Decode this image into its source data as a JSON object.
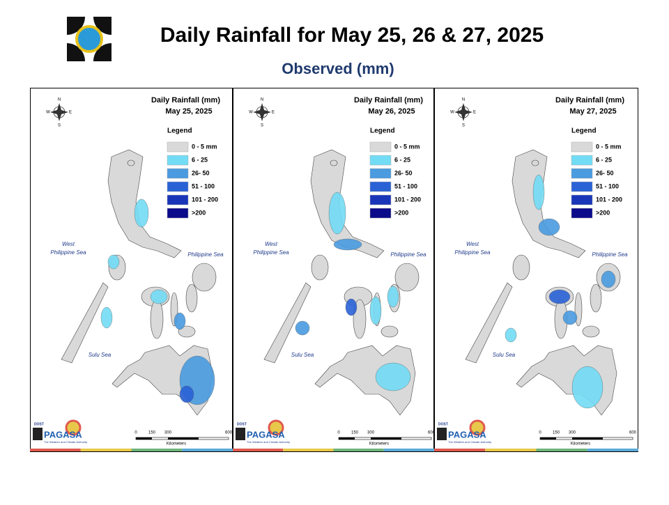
{
  "header": {
    "title": "Daily Rainfall for May 25, 26 & 27, 2025",
    "subtitle": "Observed (mm)"
  },
  "panels": [
    {
      "title": "Daily Rainfall (mm)",
      "date": "May 25, 2025",
      "legend_title": "Legend",
      "legend": [
        {
          "label": "0 - 5 mm",
          "color": "#d9d9d9"
        },
        {
          "label": "6 - 25",
          "color": "#73dcf5"
        },
        {
          "label": "26- 50",
          "color": "#4a9be0"
        },
        {
          "label": "51 - 100",
          "color": "#2a62d6"
        },
        {
          "label": "101 - 200",
          "color": "#1a36b8"
        },
        {
          "label": ">200",
          "color": "#0a0a8a"
        }
      ],
      "compass": [
        "N",
        "E",
        "S",
        "W"
      ],
      "seas": {
        "west": [
          "West",
          "Philippine Sea"
        ],
        "east": "Philippine Sea",
        "sulu": "Sulu Sea"
      },
      "scale": {
        "ticks": [
          0,
          150,
          300,
          600
        ],
        "unit": "Kilometers"
      },
      "logo": {
        "agency": "DOST",
        "name": "PAGASA",
        "tagline": "The Weather and Climate Authority"
      }
    },
    {
      "title": "Daily Rainfall (mm)",
      "date": "May 26, 2025",
      "legend_title": "Legend",
      "legend": [
        {
          "label": "0 - 5 mm",
          "color": "#d9d9d9"
        },
        {
          "label": "6 - 25",
          "color": "#73dcf5"
        },
        {
          "label": "26- 50",
          "color": "#4a9be0"
        },
        {
          "label": "51 - 100",
          "color": "#2a62d6"
        },
        {
          "label": "101 - 200",
          "color": "#1a36b8"
        },
        {
          "label": ">200",
          "color": "#0a0a8a"
        }
      ],
      "compass": [
        "N",
        "E",
        "S",
        "W"
      ],
      "seas": {
        "west": [
          "West",
          "Philippine Sea"
        ],
        "east": "Philippine Sea",
        "sulu": "Sulu Sea"
      },
      "scale": {
        "ticks": [
          0,
          150,
          300,
          600
        ],
        "unit": "Kilometers"
      },
      "logo": {
        "agency": "DOST",
        "name": "PAGASA",
        "tagline": "The Weather and Climate Authority"
      }
    },
    {
      "title": "Daily Rainfall (mm)",
      "date": "May 27, 2025",
      "legend_title": "Legend",
      "legend": [
        {
          "label": "0 - 5 mm",
          "color": "#d9d9d9"
        },
        {
          "label": "6 - 25",
          "color": "#73dcf5"
        },
        {
          "label": "26- 50",
          "color": "#4a9be0"
        },
        {
          "label": "51 - 100",
          "color": "#2a62d6"
        },
        {
          "label": "101 - 200",
          "color": "#1a36b8"
        },
        {
          "label": ">200",
          "color": "#0a0a8a"
        }
      ],
      "compass": [
        "N",
        "E",
        "S",
        "W"
      ],
      "seas": {
        "west": [
          "West",
          "Philippine Sea"
        ],
        "east": "Philippine Sea",
        "sulu": "Sulu Sea"
      },
      "scale": {
        "ticks": [
          0,
          150,
          300,
          600
        ],
        "unit": "Kilometers"
      },
      "logo": {
        "agency": "DOST",
        "name": "PAGASA",
        "tagline": "The Weather and Climate Authority"
      }
    }
  ]
}
